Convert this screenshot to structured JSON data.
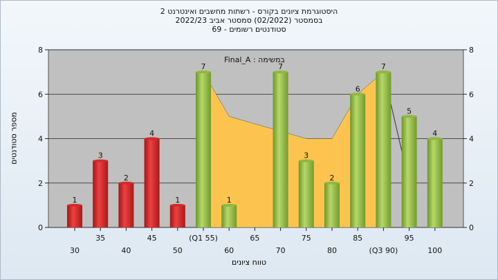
{
  "title_lines": [
    "היסטוגרמת ציונים בקורס - רשתות מחשבים ואינטרנט 2",
    "בסמסטר  (02/2022)  סמסטר אביב 2022/23",
    "סטודנטים רשומים - 69"
  ],
  "chart_data": {
    "type": "bar",
    "title": "היסטוגרמת ציונים בקורס - רשתות מחשבים ואינטרנט 2",
    "xlabel": "טווח ציונים",
    "ylabel": "מספר סטודנטים",
    "ylim": [
      0,
      8
    ],
    "yticks": [
      0,
      2,
      4,
      6,
      8
    ],
    "grid": true,
    "categories": [
      "30",
      "35",
      "40",
      "45",
      "50",
      "(Q1 55)",
      "60",
      "65",
      "70",
      "75",
      "80",
      "85",
      "(Q3 90)",
      "95",
      "100"
    ],
    "values": [
      1,
      3,
      2,
      4,
      1,
      7,
      1,
      null,
      7,
      3,
      2,
      6,
      7,
      5,
      4
    ],
    "bar_colors": [
      "#d32a2a",
      "#d32a2a",
      "#d32a2a",
      "#d32a2a",
      "#d32a2a",
      "#8fb83e",
      "#8fb83e",
      "#8fb83e",
      "#8fb83e",
      "#8fb83e",
      "#8fb83e",
      "#8fb83e",
      "#8fb83e",
      "#8fb83e",
      "#8fb83e"
    ],
    "annotation": "Final_A : במשימה",
    "area_overlay": {
      "x": [
        "(Q1 55)",
        "60",
        "75",
        "80",
        "85",
        "(Q3 90)"
      ],
      "values": [
        7,
        5,
        4,
        4,
        6,
        7
      ],
      "color": "#fcc44f"
    },
    "line_overlay": {
      "x": [
        "(Q3 90)",
        "95"
      ],
      "values": [
        7,
        2
      ]
    }
  }
}
